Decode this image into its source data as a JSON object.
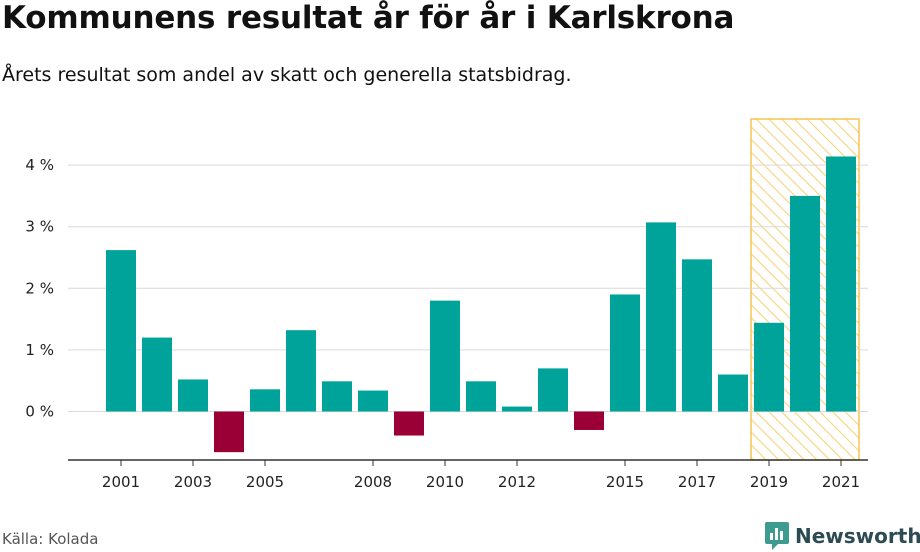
{
  "title": "Kommunens resultat år för år i Karlskrona",
  "subtitle": "Årets resultat som andel av skatt och generella statsbidrag.",
  "source": "Källa: Kolada",
  "brand": {
    "name": "Newsworthy",
    "icon": "bar-chart-bubble-icon"
  },
  "colors": {
    "positive": "#00a39a",
    "negative": "#9a0036",
    "highlight": "#f5c452",
    "grid": "#d9d9d9",
    "axis": "#333333"
  },
  "chart_data": {
    "type": "bar",
    "categories": [
      "2001",
      "2002",
      "2003",
      "2004",
      "2005",
      "2006",
      "2007",
      "2008",
      "2009",
      "2010",
      "2011",
      "2012",
      "2013",
      "2014",
      "2015",
      "2016",
      "2017",
      "2018",
      "2019",
      "2020",
      "2021"
    ],
    "values": [
      2.62,
      1.2,
      0.52,
      -0.66,
      0.36,
      1.32,
      0.49,
      0.34,
      -0.39,
      1.8,
      0.49,
      0.08,
      0.7,
      -0.3,
      1.9,
      3.07,
      2.47,
      0.6,
      1.44,
      3.5,
      4.14
    ],
    "x_tick_labels": [
      "2001",
      "2003",
      "2005",
      "2008",
      "2010",
      "2012",
      "2015",
      "2017",
      "2019",
      "2021"
    ],
    "y_ticks": [
      0,
      1,
      2,
      3,
      4
    ],
    "y_tick_labels": [
      "0 %",
      "1 %",
      "2 %",
      "3 %",
      "4 %"
    ],
    "ylim": [
      -0.8,
      4.8
    ],
    "highlight_categories": [
      "2019",
      "2020",
      "2021"
    ],
    "grid": true,
    "xlabel": "",
    "ylabel": ""
  }
}
